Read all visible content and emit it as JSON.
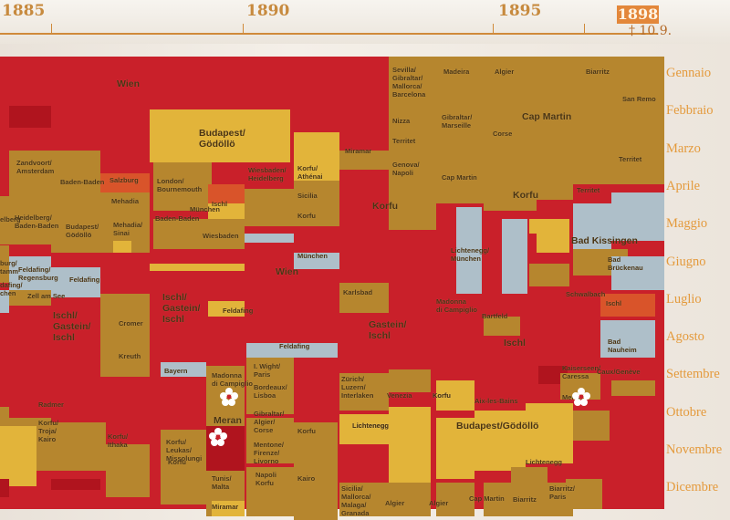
{
  "timeline": {
    "years": [
      "1885",
      "1890",
      "1895"
    ],
    "end_year": "1898",
    "end_note": "† 10.9."
  },
  "months": [
    "Gennaio",
    "Febbraio",
    "Marzo",
    "Aprile",
    "Maggio",
    "Giugno",
    "Luglio",
    "Agosto",
    "Settembre",
    "Ottobre",
    "Novembre",
    "Dicembre"
  ],
  "places": [
    {
      "id": "wien1",
      "text": "Wien",
      "big": true
    },
    {
      "id": "budapest1",
      "text": "Budapest/\nGödöllö",
      "big": true
    },
    {
      "id": "zandvoort",
      "text": "Zandvoort/\nAmsterdam"
    },
    {
      "id": "badenbaden1",
      "text": "Baden-Baden"
    },
    {
      "id": "salzburg",
      "text": "Salzburg"
    },
    {
      "id": "mehadia",
      "text": "Mehadia"
    },
    {
      "id": "london",
      "text": "London/\nBournemouth"
    },
    {
      "id": "wiesbaden1",
      "text": "Wiesbaden/\nHeidelberg"
    },
    {
      "id": "korfu_athenai",
      "text": "Korfu/\nAthénai"
    },
    {
      "id": "miramar1",
      "text": "Miramar"
    },
    {
      "id": "heidelberg_bb",
      "text": "Heidelberg/\nBaden-Baden"
    },
    {
      "id": "budapest2",
      "text": "Budapest/\nGödöllö"
    },
    {
      "id": "mehadia_sinai",
      "text": "Mehadia/\nSinai"
    },
    {
      "id": "ischl_small",
      "text": "Ischl"
    },
    {
      "id": "munchen1",
      "text": "München"
    },
    {
      "id": "badenbaden2",
      "text": "Baden-Baden"
    },
    {
      "id": "sicilia1",
      "text": "Sicilia"
    },
    {
      "id": "korfu_small1",
      "text": "Korfu"
    },
    {
      "id": "korfu_big1",
      "text": "Korfu",
      "big": true
    },
    {
      "id": "wiesbaden2",
      "text": "Wiesbaden"
    },
    {
      "id": "munchen2",
      "text": "München"
    },
    {
      "id": "wien2",
      "text": "Wien",
      "big": true
    },
    {
      "id": "feldafing_reg",
      "text": "Feldafing/\nRegensburg"
    },
    {
      "id": "feldafing1",
      "text": "Feldafing"
    },
    {
      "id": "zellamsee",
      "text": "Zell am See"
    },
    {
      "id": "ischl_gastein1",
      "text": "Ischl/\nGastein/\nIschl",
      "big": true
    },
    {
      "id": "ischl_gastein2",
      "text": "Ischl/\nGastein/\nIschl",
      "big": true
    },
    {
      "id": "feldafing2",
      "text": "Feldafing"
    },
    {
      "id": "karlsbad",
      "text": "Karlsbad"
    },
    {
      "id": "cromer",
      "text": "Cromer"
    },
    {
      "id": "kreuth",
      "text": "Kreuth"
    },
    {
      "id": "bayern",
      "text": "Bayern"
    },
    {
      "id": "feldafing3",
      "text": "Feldafing"
    },
    {
      "id": "gastein_ischl",
      "text": "Gastein/\nIschl",
      "big": true
    },
    {
      "id": "madonna1",
      "text": "Madonna\ndi Campiglio"
    },
    {
      "id": "iwight",
      "text": "I. Wight/\nParis"
    },
    {
      "id": "zurich",
      "text": "Zürich/\nLuzern/\nInterlaken"
    },
    {
      "id": "radmer",
      "text": "Radmer"
    },
    {
      "id": "bordeaux",
      "text": "Bordeaux/\nLisboa"
    },
    {
      "id": "venezia",
      "text": "Venezia"
    },
    {
      "id": "korfu_small2",
      "text": "Korfu"
    },
    {
      "id": "meran",
      "text": "Meran",
      "big": true
    },
    {
      "id": "korfu_troja",
      "text": "Korfu/\nTroja/\nKairo"
    },
    {
      "id": "korfu_ithaka",
      "text": "Korfu/\nIthaka"
    },
    {
      "id": "gibraltar_alg",
      "text": "Gibraltar/\nAlgier/\nCorse"
    },
    {
      "id": "korfu_small3",
      "text": "Korfu"
    },
    {
      "id": "lichtenegg1",
      "text": "Lichtenegg"
    },
    {
      "id": "korfu_leukas",
      "text": "Korfu/\nLeukas/\nMissolungi"
    },
    {
      "id": "mentone",
      "text": "Mentone/\nFirenze/\nLivorno"
    },
    {
      "id": "korfu_small4",
      "text": "Korfu"
    },
    {
      "id": "tunis",
      "text": "Tunis/\nMalta"
    },
    {
      "id": "napoli_korfu",
      "text": "Napoli\nKorfu"
    },
    {
      "id": "kairo",
      "text": "Kairo"
    },
    {
      "id": "miramar2",
      "text": "Miramar"
    },
    {
      "id": "sicilia_mall",
      "text": "Sicilia/\nMallorca/\nMalaga/\nGranada"
    },
    {
      "id": "algier1",
      "text": "Algier"
    },
    {
      "id": "algier2",
      "text": "Algier"
    },
    {
      "id": "sevilla",
      "text": "Sevilla/\nGibraltar/\nMallorca/\nBarcelona"
    },
    {
      "id": "madeira",
      "text": "Madeira"
    },
    {
      "id": "algier3",
      "text": "Algier"
    },
    {
      "id": "biarritz1",
      "text": "Biarritz"
    },
    {
      "id": "sanremo",
      "text": "San Remo"
    },
    {
      "id": "gibraltar_mars",
      "text": "Gibraltar/\nMarseille"
    },
    {
      "id": "capmartin1",
      "text": "Cap Martin",
      "big": true
    },
    {
      "id": "nizza",
      "text": "Nizza"
    },
    {
      "id": "territet1",
      "text": "Territet"
    },
    {
      "id": "corse",
      "text": "Corse"
    },
    {
      "id": "territet2",
      "text": "Territet"
    },
    {
      "id": "genova",
      "text": "Genova/\nNapoli"
    },
    {
      "id": "capmartin2",
      "text": "Cap Martin"
    },
    {
      "id": "korfu_big2",
      "text": "Korfu",
      "big": true
    },
    {
      "id": "territet3",
      "text": "Territet"
    },
    {
      "id": "badkissingen",
      "text": "Bad Kissingen",
      "big": true
    },
    {
      "id": "lichtenegg_m",
      "text": "Lichtenegg/\nMünchen"
    },
    {
      "id": "badbrueckenau",
      "text": "Bad\nBrückenau"
    },
    {
      "id": "schwalbach",
      "text": "Schwalbach"
    },
    {
      "id": "ischl_small2",
      "text": "Ischl"
    },
    {
      "id": "madonna2",
      "text": "Madonna\ndi Campiglio"
    },
    {
      "id": "bartfeld",
      "text": "Bartfeld"
    },
    {
      "id": "ischl_big",
      "text": "Ischl",
      "big": true
    },
    {
      "id": "badnauheim",
      "text": "Bad\nNauheim"
    },
    {
      "id": "kaiserseen",
      "text": "Kaiserseen/\nCaressa"
    },
    {
      "id": "caux",
      "text": "Caux/Genève"
    },
    {
      "id": "korfu_small5",
      "text": "Korfu"
    },
    {
      "id": "aixlesbains",
      "text": "Aix-les-Bains"
    },
    {
      "id": "meran2",
      "text": "Meran"
    },
    {
      "id": "lichtenegg2",
      "text": "Lichtenegg"
    },
    {
      "id": "budapest3",
      "text": "Budapest/Gödöllö",
      "big": true
    },
    {
      "id": "lichtenegg3",
      "text": "Lichtenegg"
    },
    {
      "id": "capmartin3",
      "text": "Cap Martin"
    },
    {
      "id": "biarritz2",
      "text": "Biarritz"
    },
    {
      "id": "biarritz_paris",
      "text": "Biarritz/\nParis"
    },
    {
      "id": "left1",
      "text": "burg/\ntamm"
    },
    {
      "id": "left2",
      "text": "dafing/\nchen"
    },
    {
      "id": "left3",
      "text": "elberg"
    }
  ],
  "colors": {
    "red": "#c9202a",
    "darkred": "#b0141e",
    "gold": "#b6862e",
    "olive": "#a07a2a",
    "yellow": "#e2b43a",
    "orange": "#d9542a",
    "blue": "#aebfc9",
    "year_accent": "#e3873a",
    "month_text": "#e49a3c"
  }
}
